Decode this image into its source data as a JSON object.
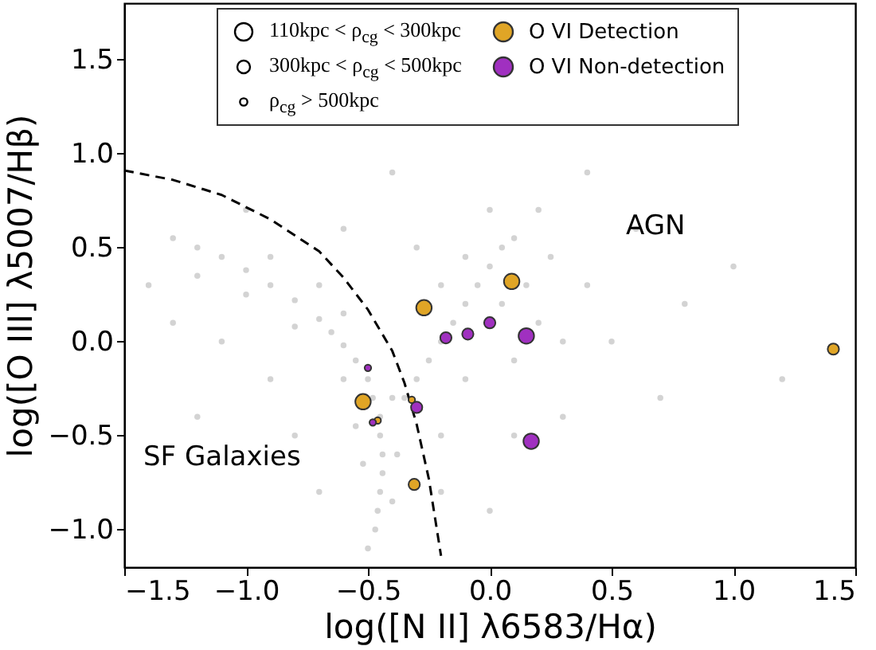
{
  "chart_data": {
    "type": "scatter",
    "xlabel": "log([N II] λ6583/Hα)",
    "ylabel": "log([O III] λ5007/Hβ)",
    "xlim": [
      -1.5,
      1.5
    ],
    "ylim": [
      -1.2,
      1.8
    ],
    "xticks": [
      {
        "value": -1.5,
        "label": "−1.5"
      },
      {
        "value": -1,
        "label": "−1.0"
      },
      {
        "value": -0.5,
        "label": "−0.5"
      },
      {
        "value": 0,
        "label": "0.0"
      },
      {
        "value": 0.5,
        "label": "0.5"
      },
      {
        "value": 1,
        "label": "1.0"
      },
      {
        "value": 1.5,
        "label": "1.5"
      }
    ],
    "yticks": [
      {
        "value": -1,
        "label": "−1.0"
      },
      {
        "value": -0.5,
        "label": "−0.5"
      },
      {
        "value": 0,
        "label": "0.0"
      },
      {
        "value": 0.5,
        "label": "0.5"
      },
      {
        "value": 1,
        "label": "1.0"
      },
      {
        "value": 1.5,
        "label": "1.5"
      }
    ],
    "grid": false,
    "legend": "top",
    "marker": "circle",
    "size_legend": [
      {
        "value": 1,
        "label": "110kpc < ρ$_{cg}$ < 300kpc"
      },
      {
        "value": 0.53,
        "label": "300kpc < ρ$_{cg}$ < 500kpc"
      },
      {
        "value": 0.18,
        "label": "ρ$_{cg}$ > 500kpc"
      }
    ],
    "annotations": [
      "AGN",
      "SF Galaxies"
    ],
    "series": [
      {
        "type": "scatter",
        "color": "#808080",
        "x": [
          -1.3,
          -1.2,
          -1.1,
          -1.0,
          -0.9,
          -0.8,
          -0.7,
          -0.65,
          -0.6,
          -0.55,
          -0.5,
          -0.48,
          -0.45,
          -0.45,
          -0.44,
          -0.44,
          -0.45,
          -0.46,
          -0.47,
          -0.5,
          -1.2,
          -1.0,
          -0.9,
          -0.8,
          -0.7,
          -0.6,
          -0.6,
          -0.55,
          -0.4,
          -0.38,
          -0.52,
          -0.4,
          -1.4,
          -1.3,
          -1.1,
          -0.9,
          -0.8,
          -0.7,
          -1.2,
          -0.35,
          -0.3,
          -0.25,
          -0.2,
          -0.15,
          -0.1,
          -0.05,
          0.0,
          0.05,
          0.1,
          -0.2,
          -0.1,
          0.05,
          0.15,
          0.2,
          0.1,
          -0.1,
          0.25,
          0.3,
          -0.3,
          0.0,
          0.2,
          0.4,
          0.5,
          0.3,
          0.1,
          -0.2,
          0.6,
          0.8,
          0.7,
          1.0,
          1.2,
          -0.2,
          0.0,
          -1.0,
          -0.6,
          0.4,
          -0.4
        ],
        "values": [
          0.55,
          0.5,
          0.45,
          0.38,
          0.3,
          0.22,
          0.12,
          0.05,
          -0.02,
          -0.1,
          -0.2,
          -0.3,
          -0.4,
          -0.5,
          -0.6,
          -0.7,
          -0.8,
          -0.9,
          -1.0,
          -1.1,
          0.35,
          0.25,
          0.45,
          0.08,
          0.3,
          -0.2,
          0.15,
          -0.45,
          -0.3,
          -0.6,
          -0.65,
          -0.85,
          0.3,
          0.1,
          0.0,
          -0.2,
          -0.5,
          -0.8,
          -0.4,
          -0.3,
          -0.2,
          -0.1,
          0.0,
          0.1,
          0.2,
          0.3,
          0.4,
          0.5,
          0.55,
          0.3,
          0.45,
          0.2,
          0.3,
          0.1,
          -0.1,
          -0.2,
          0.45,
          0.0,
          0.5,
          0.7,
          0.7,
          0.3,
          0.0,
          -0.4,
          -0.5,
          -0.5,
          0.6,
          0.2,
          -0.3,
          0.4,
          -0.2,
          -0.8,
          -0.9,
          0.7,
          0.6,
          0.9,
          0.9
        ]
      },
      {
        "type": "line",
        "marker": "none",
        "line_style": "dashed",
        "color": "#000000",
        "x": [
          -1.5,
          -1.3,
          -1.1,
          -0.9,
          -0.7,
          -0.6,
          -0.5,
          -0.4,
          -0.35,
          -0.3,
          -0.25,
          -0.2
        ],
        "values": [
          0.91,
          0.86,
          0.78,
          0.65,
          0.48,
          0.34,
          0.17,
          -0.05,
          -0.22,
          -0.44,
          -0.73,
          -1.14
        ]
      },
      {
        "type": "scatter",
        "name": "O VI Detection",
        "color": "#e0a526",
        "x": [
          0.09,
          -0.27,
          -0.52,
          -0.31,
          1.41,
          -0.46,
          -0.32
        ],
        "values": [
          0.32,
          0.18,
          -0.32,
          -0.76,
          -0.04,
          -0.42,
          -0.31
        ],
        "sizes": [
          1,
          1,
          1,
          0.53,
          0.53,
          0.18,
          0.18
        ]
      },
      {
        "type": "scatter",
        "name": "O VI Non-detection",
        "color": "#a030c0",
        "x": [
          0.15,
          0.17,
          -0.18,
          -0.09,
          0.0,
          -0.3,
          -0.5,
          -0.48
        ],
        "values": [
          0.03,
          -0.53,
          0.02,
          0.04,
          0.1,
          -0.35,
          -0.14,
          -0.43
        ],
        "sizes": [
          1,
          1,
          0.53,
          0.53,
          0.53,
          0.53,
          0.18,
          0.18
        ]
      }
    ]
  }
}
